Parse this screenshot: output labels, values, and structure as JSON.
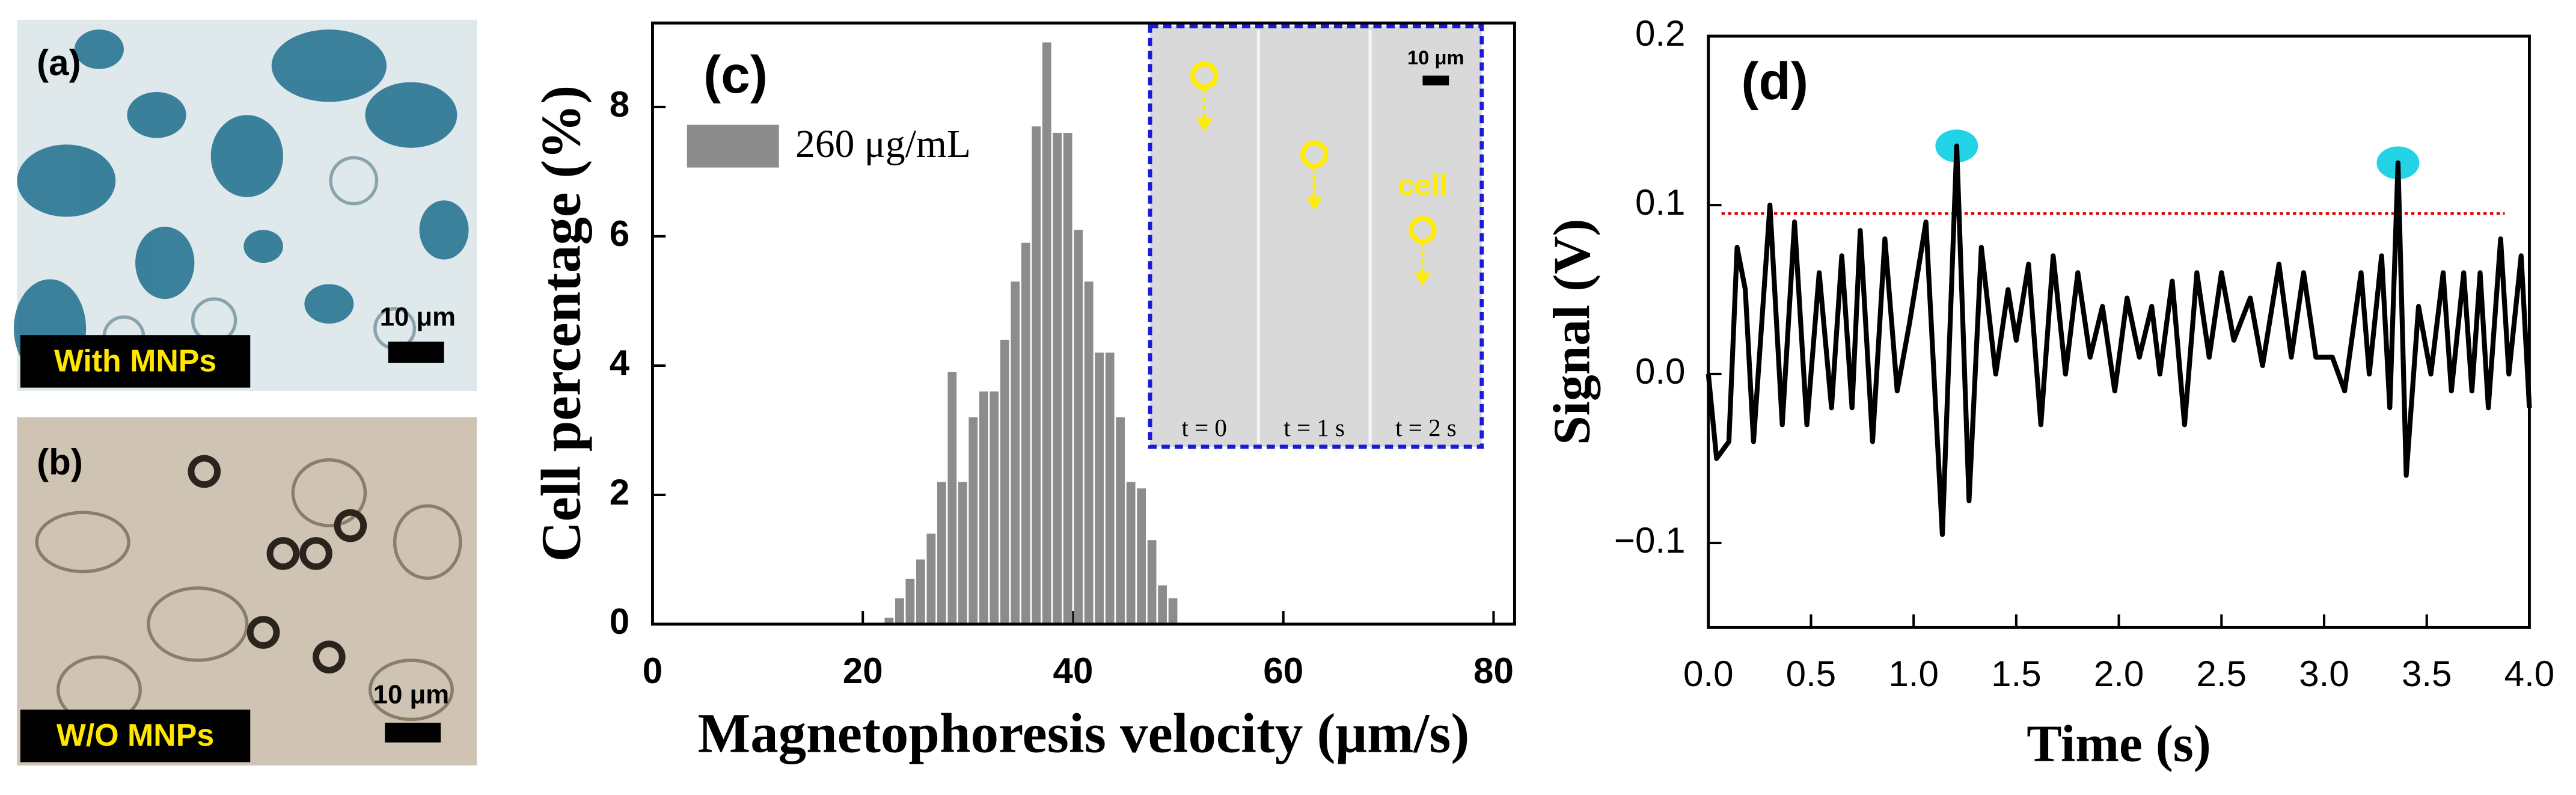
{
  "panels": {
    "a": {
      "label": "(a)",
      "caption": "With MNPs",
      "scale_bar": "10 μm"
    },
    "b": {
      "label": "(b)",
      "caption": "W/O MNPs",
      "scale_bar": "10 μm"
    }
  },
  "chart_data": [
    {
      "type": "histogram",
      "panel_label": "(c)",
      "x_label": "Magnetophoresis velocity (μm/s)",
      "y_label": "Cell percentage (%)",
      "bins": [
        22,
        23,
        24,
        25,
        26,
        27,
        28,
        29,
        30,
        31,
        32,
        33,
        34,
        35,
        36,
        37,
        38,
        39,
        40,
        41,
        42,
        43,
        44,
        45,
        46,
        47,
        48,
        49,
        50
      ],
      "series": [
        {
          "name": "260 μg/mL",
          "color": "#8c8c8c",
          "values": [
            0.1,
            0.4,
            0.7,
            1.0,
            1.4,
            2.2,
            3.9,
            2.2,
            3.2,
            3.6,
            3.6,
            4.4,
            5.3,
            5.9,
            7.7,
            9.0,
            7.6,
            7.6,
            6.1,
            5.3,
            4.2,
            4.2,
            3.2,
            2.2,
            2.1,
            1.3,
            0.6,
            0.4
          ]
        }
      ],
      "xlim": [
        0,
        82
      ],
      "ylim": [
        0,
        9.3
      ],
      "xticks": [
        0,
        20,
        40,
        60,
        80
      ],
      "yticks": [
        0,
        2,
        4,
        6,
        8
      ],
      "inset": {
        "scale_bar": "10 μm",
        "cell_label": "cell",
        "frames": [
          "t = 0",
          "t = 1 s",
          "t = 2 s"
        ]
      }
    },
    {
      "type": "line",
      "panel_label": "(d)",
      "x_label": "Time (s)",
      "y_label": "Signal (V)",
      "color": "#000000",
      "x": [
        0,
        0.04,
        0.1,
        0.14,
        0.18,
        0.22,
        0.3,
        0.36,
        0.42,
        0.48,
        0.54,
        0.6,
        0.65,
        0.7,
        0.74,
        0.8,
        0.86,
        0.92,
        0.98,
        1.06,
        1.14,
        1.21,
        1.27,
        1.33,
        1.4,
        1.46,
        1.5,
        1.56,
        1.62,
        1.68,
        1.74,
        1.8,
        1.86,
        1.92,
        1.98,
        2.04,
        2.1,
        2.16,
        2.2,
        2.26,
        2.32,
        2.38,
        2.44,
        2.5,
        2.56,
        2.64,
        2.7,
        2.78,
        2.84,
        2.9,
        2.96,
        3.04,
        3.1,
        3.18,
        3.22,
        3.28,
        3.32,
        3.36,
        3.4,
        3.46,
        3.52,
        3.58,
        3.62,
        3.68,
        3.72,
        3.76,
        3.8,
        3.86,
        3.9,
        3.96,
        4.0
      ],
      "values": [
        0,
        -0.05,
        -0.04,
        0.075,
        0.05,
        -0.04,
        0.1,
        -0.03,
        0.09,
        -0.03,
        0.06,
        -0.02,
        0.07,
        -0.02,
        0.085,
        -0.04,
        0.08,
        -0.01,
        0.03,
        0.09,
        -0.095,
        0.135,
        -0.075,
        0.075,
        0,
        0.05,
        0.02,
        0.065,
        -0.03,
        0.07,
        0,
        0.06,
        0.01,
        0.04,
        -0.01,
        0.045,
        0.01,
        0.04,
        0,
        0.055,
        -0.03,
        0.06,
        0.01,
        0.06,
        0.02,
        0.045,
        0.005,
        0.065,
        0.01,
        0.06,
        0.01,
        0.01,
        -0.01,
        0.06,
        0,
        0.07,
        -0.02,
        0.125,
        -0.06,
        0.04,
        0,
        0.06,
        -0.01,
        0.06,
        -0.01,
        0.06,
        -0.02,
        0.08,
        0,
        0.07,
        -0.02
      ],
      "threshold": {
        "value": 0.095,
        "color": "#e00000"
      },
      "peaks": {
        "x": [
          1.21,
          3.36
        ],
        "values": [
          0.135,
          0.125
        ],
        "color": "#22d3e6"
      },
      "xlim": [
        0,
        4
      ],
      "ylim": [
        -0.15,
        0.2
      ],
      "xticks": [
        {
          "value": 0,
          "label": "0.0"
        },
        0.5,
        {
          "value": 1,
          "label": "1.0"
        },
        1.5,
        {
          "value": 2,
          "label": "2.0"
        },
        2.5,
        {
          "value": 3,
          "label": "3.0"
        },
        3.5,
        {
          "value": 4,
          "label": "4.0"
        }
      ],
      "yticks": [
        {
          "value": -0.1,
          "label": "−0.1"
        },
        {
          "value": 0,
          "label": "0.0"
        },
        0.1,
        0.2
      ]
    }
  ]
}
